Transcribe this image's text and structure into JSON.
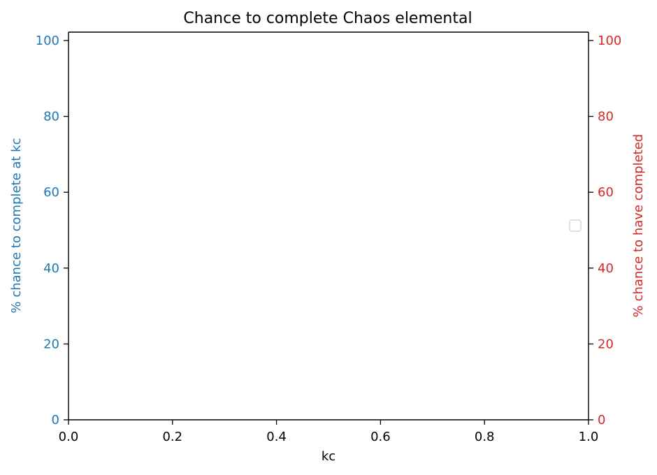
{
  "chart_data": {
    "type": "line",
    "title": "Chance to complete Chaos elemental",
    "xlabel": "kc",
    "ylabel_left": "% chance to complete at kc",
    "ylabel_right": "% chance to have completed",
    "xlim": [
      0.0,
      1.0
    ],
    "ylim_left": [
      0,
      100
    ],
    "ylim_right": [
      0,
      100
    ],
    "x_ticks": [
      "0.0",
      "0.2",
      "0.4",
      "0.6",
      "0.8",
      "1.0"
    ],
    "y_ticks_left": [
      "0",
      "20",
      "40",
      "60",
      "80",
      "100"
    ],
    "y_ticks_right": [
      "0",
      "20",
      "40",
      "60",
      "80",
      "100"
    ],
    "series": [],
    "grid": false,
    "legend": {
      "placement": "center-right",
      "entries": []
    },
    "colors": {
      "left_axis": "#1f77b4",
      "right_axis": "#d62728",
      "axis_frame": "#000000",
      "legend_border": "#cccccc"
    }
  }
}
